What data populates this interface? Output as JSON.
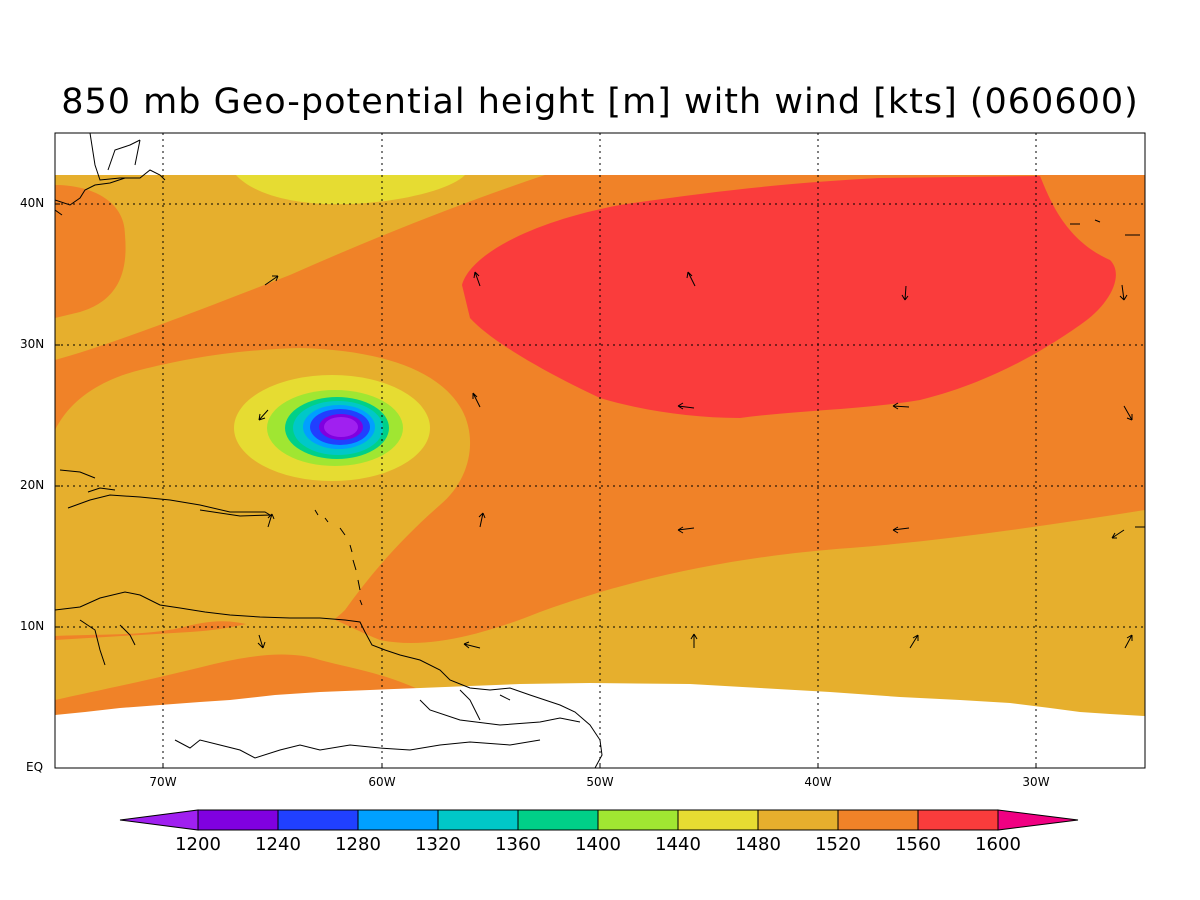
{
  "title": "850 mb Geo-potential height [m] with wind [kts] (060600)",
  "map": {
    "projection": "lat-lon",
    "lon_range": [
      "75W",
      "25W"
    ],
    "lat_range": [
      "EQ",
      "45N"
    ],
    "grid": "dotted",
    "features": [
      "geopotential height filled contours",
      "wind vectors",
      "coastlines"
    ]
  },
  "axes": {
    "lat_labels": [
      "40N",
      "30N",
      "20N",
      "10N",
      "EQ"
    ],
    "lon_labels": [
      "70W",
      "60W",
      "50W",
      "40W",
      "30W"
    ]
  },
  "colorbar": {
    "labels": [
      "1200",
      "1240",
      "1280",
      "1320",
      "1360",
      "1400",
      "1440",
      "1480",
      "1520",
      "1560",
      "1600"
    ],
    "colors": [
      "#a020f0",
      "#8000e0",
      "#2040ff",
      "#00a0ff",
      "#00c8c8",
      "#00d088",
      "#a0e632",
      "#e6dc32",
      "#e6af2d",
      "#f08228",
      "#fa3c3c",
      "#f00082"
    ]
  },
  "palette": {
    "h1480": "#e6dc32",
    "h1520": "#e6af2d",
    "h1560": "#f08228",
    "h1600": "#fa3c3c",
    "h1440": "#a0e632",
    "h1400": "#00d088",
    "h1360": "#00c8c8",
    "h1320": "#00a0ff",
    "h1280": "#2040ff",
    "h1240": "#8000e0",
    "h1200": "#a020f0"
  }
}
